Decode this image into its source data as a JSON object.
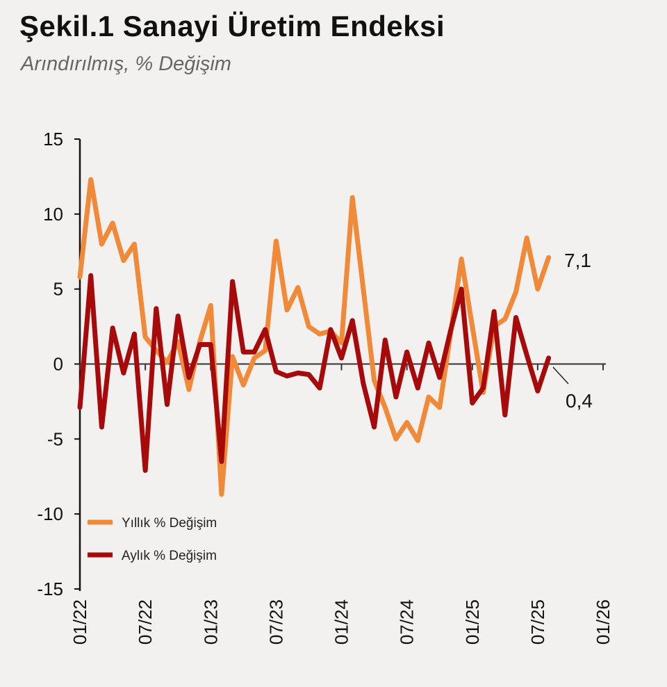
{
  "chart_data": {
    "type": "line",
    "title": "Şekil.1 Sanayi Üretim Endeksi",
    "subtitle": "Arındırılmış, % Değişim",
    "xlabel": "",
    "ylabel": "",
    "ylim": [
      -15,
      15
    ],
    "yticks": [
      "15",
      "10",
      "5",
      "0",
      "-5",
      "-10",
      "-15"
    ],
    "ytick_values": [
      15,
      10,
      5,
      0,
      -5,
      -10,
      -15
    ],
    "xticks": [
      "01/22",
      "07/22",
      "01/23",
      "07/23",
      "01/24",
      "07/24",
      "01/25",
      "07/25",
      "01/26"
    ],
    "x_start": "01/22",
    "x_months_total": 48,
    "legend_position": "bottom-left",
    "grid": false,
    "series": [
      {
        "name": "Yıllık % Değişim",
        "color": "#f08a38",
        "values": [
          5.8,
          12.3,
          8.0,
          9.4,
          6.9,
          8.0,
          1.8,
          0.9,
          0.1,
          1.5,
          -1.7,
          1.5,
          3.9,
          -8.7,
          0.5,
          -1.4,
          0.4,
          0.9,
          8.2,
          3.6,
          5.1,
          2.5,
          2.0,
          2.2,
          1.4,
          11.1,
          5.0,
          -1.1,
          -2.9,
          -5.0,
          -3.9,
          -5.1,
          -2.2,
          -2.9,
          2.0,
          7.0,
          2.5,
          -1.9,
          2.5,
          3.0,
          4.8,
          8.4,
          5.0,
          7.1
        ]
      },
      {
        "name": "Aylık % Değişim",
        "color": "#a60a0a",
        "values": [
          -2.9,
          5.9,
          -4.2,
          2.4,
          -0.6,
          2.0,
          -7.1,
          3.7,
          -2.7,
          3.2,
          -0.9,
          1.3,
          1.3,
          -6.5,
          5.5,
          0.8,
          0.8,
          2.3,
          -0.5,
          -0.8,
          -0.6,
          -0.7,
          -1.6,
          2.3,
          0.4,
          2.9,
          -1.3,
          -4.2,
          1.6,
          -2.2,
          0.8,
          -1.6,
          1.4,
          -0.9,
          2.2,
          5.0,
          -2.6,
          -1.6,
          3.5,
          -3.4,
          3.1,
          0.6,
          -1.8,
          0.4
        ]
      }
    ],
    "annotations": [
      "7,1",
      "0,4"
    ]
  }
}
